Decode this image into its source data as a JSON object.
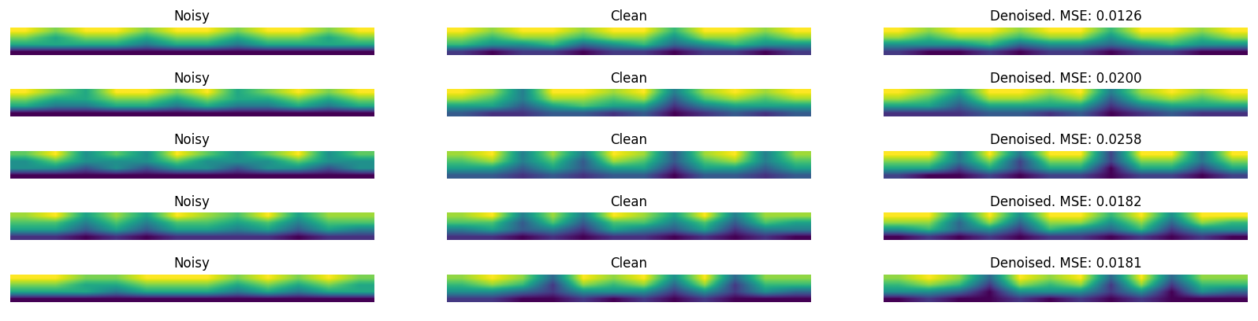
{
  "chart_data": [
    {
      "type": "heatmap",
      "title": "Noisy",
      "tick_labels": false,
      "cells": [
        [
          0.7,
          0.6,
          0.7,
          0.7,
          0.6,
          0.7,
          0.7,
          0.6,
          0.7,
          0.7,
          0.6,
          0.7
        ],
        [
          0.6,
          0.5,
          0.6,
          0.6,
          0.5,
          0.6,
          0.6,
          0.5,
          0.6,
          0.6,
          0.5,
          0.6
        ],
        [
          0.5,
          0.5,
          0.5,
          0.5,
          0.4,
          0.5,
          0.5,
          0.4,
          0.5,
          0.5,
          0.5,
          0.5
        ],
        [
          0.2,
          0.2,
          0.2,
          0.2,
          0.2,
          0.2,
          0.2,
          0.2,
          0.2,
          0.2,
          0.2,
          0.2
        ]
      ]
    },
    {
      "type": "heatmap",
      "title": "Clean",
      "tick_labels": false,
      "cells": [
        [
          0.7,
          0.6,
          0.7,
          0.7,
          0.6,
          0.7,
          0.7,
          0.5,
          0.7,
          0.7,
          0.6,
          0.7
        ],
        [
          0.6,
          0.5,
          0.6,
          0.6,
          0.5,
          0.6,
          0.6,
          0.4,
          0.6,
          0.6,
          0.5,
          0.6
        ],
        [
          0.5,
          0.4,
          0.4,
          0.5,
          0.3,
          0.4,
          0.5,
          0.3,
          0.4,
          0.5,
          0.4,
          0.4
        ],
        [
          0.2,
          0.1,
          0.2,
          0.2,
          0.1,
          0.2,
          0.2,
          0.1,
          0.2,
          0.2,
          0.1,
          0.2
        ]
      ]
    },
    {
      "type": "heatmap",
      "title": "Denoised. MSE: 0.0126",
      "tick_labels": false,
      "cells": [
        [
          0.7,
          0.6,
          0.7,
          0.7,
          0.6,
          0.7,
          0.7,
          0.5,
          0.7,
          0.7,
          0.6,
          0.7
        ],
        [
          0.6,
          0.5,
          0.6,
          0.6,
          0.5,
          0.6,
          0.6,
          0.4,
          0.6,
          0.6,
          0.5,
          0.6
        ],
        [
          0.4,
          0.4,
          0.4,
          0.5,
          0.3,
          0.4,
          0.4,
          0.3,
          0.4,
          0.5,
          0.4,
          0.4
        ],
        [
          0.2,
          0.1,
          0.1,
          0.2,
          0.1,
          0.2,
          0.2,
          0.1,
          0.2,
          0.2,
          0.1,
          0.1
        ]
      ]
    },
    {
      "type": "heatmap",
      "title": "Noisy",
      "tick_labels": false,
      "cells": [
        [
          0.7,
          0.6,
          0.5,
          0.7,
          0.7,
          0.6,
          0.7,
          0.5,
          0.6,
          0.7,
          0.6,
          0.7
        ],
        [
          0.6,
          0.5,
          0.5,
          0.6,
          0.6,
          0.5,
          0.6,
          0.5,
          0.5,
          0.6,
          0.5,
          0.6
        ],
        [
          0.5,
          0.4,
          0.4,
          0.5,
          0.5,
          0.4,
          0.5,
          0.4,
          0.4,
          0.5,
          0.4,
          0.5
        ],
        [
          0.2,
          0.2,
          0.2,
          0.2,
          0.2,
          0.2,
          0.2,
          0.2,
          0.2,
          0.2,
          0.2,
          0.2
        ]
      ]
    },
    {
      "type": "heatmap",
      "title": "Clean",
      "tick_labels": false,
      "cells": [
        [
          0.7,
          0.6,
          0.3,
          0.7,
          0.7,
          0.6,
          0.7,
          0.3,
          0.6,
          0.7,
          0.6,
          0.7
        ],
        [
          0.6,
          0.5,
          0.3,
          0.6,
          0.6,
          0.5,
          0.6,
          0.2,
          0.5,
          0.6,
          0.5,
          0.6
        ],
        [
          0.4,
          0.4,
          0.2,
          0.4,
          0.5,
          0.4,
          0.4,
          0.1,
          0.3,
          0.4,
          0.4,
          0.4
        ],
        [
          0.2,
          0.1,
          0.1,
          0.2,
          0.2,
          0.1,
          0.2,
          0.0,
          0.1,
          0.2,
          0.1,
          0.2
        ]
      ]
    },
    {
      "type": "heatmap",
      "title": "Denoised. MSE: 0.0200",
      "tick_labels": false,
      "cells": [
        [
          0.7,
          0.6,
          0.4,
          0.7,
          0.7,
          0.6,
          0.7,
          0.3,
          0.6,
          0.7,
          0.6,
          0.7
        ],
        [
          0.6,
          0.5,
          0.3,
          0.6,
          0.6,
          0.5,
          0.6,
          0.2,
          0.5,
          0.6,
          0.5,
          0.6
        ],
        [
          0.4,
          0.4,
          0.2,
          0.4,
          0.4,
          0.4,
          0.4,
          0.1,
          0.3,
          0.4,
          0.4,
          0.4
        ],
        [
          0.1,
          0.1,
          0.1,
          0.2,
          0.2,
          0.1,
          0.2,
          0.0,
          0.1,
          0.2,
          0.1,
          0.1
        ]
      ]
    },
    {
      "type": "heatmap",
      "title": "Noisy",
      "tick_labels": false,
      "cells": [
        [
          0.6,
          0.7,
          0.5,
          0.6,
          0.5,
          0.7,
          0.6,
          0.5,
          0.6,
          0.7,
          0.5,
          0.6
        ],
        [
          0.5,
          0.6,
          0.5,
          0.5,
          0.5,
          0.6,
          0.5,
          0.5,
          0.5,
          0.6,
          0.5,
          0.5
        ],
        [
          0.5,
          0.5,
          0.4,
          0.5,
          0.4,
          0.5,
          0.5,
          0.4,
          0.5,
          0.5,
          0.4,
          0.5
        ],
        [
          0.3,
          0.3,
          0.3,
          0.3,
          0.3,
          0.3,
          0.3,
          0.3,
          0.3,
          0.3,
          0.3,
          0.3
        ]
      ]
    },
    {
      "type": "heatmap",
      "title": "Clean",
      "tick_labels": false,
      "cells": [
        [
          0.6,
          0.7,
          0.3,
          0.6,
          0.3,
          0.7,
          0.6,
          0.2,
          0.6,
          0.7,
          0.3,
          0.6
        ],
        [
          0.5,
          0.6,
          0.3,
          0.5,
          0.2,
          0.6,
          0.5,
          0.2,
          0.5,
          0.6,
          0.3,
          0.5
        ],
        [
          0.4,
          0.4,
          0.2,
          0.4,
          0.2,
          0.4,
          0.4,
          0.1,
          0.4,
          0.4,
          0.2,
          0.4
        ],
        [
          0.2,
          0.2,
          0.1,
          0.2,
          0.1,
          0.2,
          0.2,
          0.0,
          0.2,
          0.2,
          0.1,
          0.2
        ]
      ]
    },
    {
      "type": "heatmap",
      "title": "Denoised. MSE: 0.0258",
      "tick_labels": false,
      "cells": [
        [
          0.6,
          0.6,
          0.3,
          0.6,
          0.3,
          0.6,
          0.6,
          0.2,
          0.6,
          0.6,
          0.3,
          0.6
        ],
        [
          0.5,
          0.5,
          0.3,
          0.5,
          0.2,
          0.5,
          0.5,
          0.2,
          0.5,
          0.5,
          0.3,
          0.5
        ],
        [
          0.4,
          0.4,
          0.2,
          0.4,
          0.2,
          0.4,
          0.4,
          0.1,
          0.4,
          0.4,
          0.2,
          0.4
        ],
        [
          0.2,
          0.1,
          0.1,
          0.2,
          0.1,
          0.2,
          0.2,
          0.1,
          0.2,
          0.2,
          0.1,
          0.2
        ]
      ]
    },
    {
      "type": "heatmap",
      "title": "Noisy",
      "tick_labels": false,
      "cells": [
        [
          0.7,
          0.8,
          0.5,
          0.7,
          0.5,
          0.8,
          0.7,
          0.6,
          0.8,
          0.5,
          0.7,
          0.7
        ],
        [
          0.6,
          0.6,
          0.4,
          0.6,
          0.4,
          0.6,
          0.6,
          0.5,
          0.6,
          0.4,
          0.6,
          0.6
        ],
        [
          0.5,
          0.5,
          0.3,
          0.5,
          0.3,
          0.5,
          0.5,
          0.4,
          0.5,
          0.3,
          0.5,
          0.4
        ],
        [
          0.2,
          0.2,
          0.1,
          0.2,
          0.1,
          0.2,
          0.2,
          0.2,
          0.2,
          0.1,
          0.2,
          0.2
        ]
      ]
    },
    {
      "type": "heatmap",
      "title": "Clean",
      "tick_labels": false,
      "cells": [
        [
          0.7,
          0.8,
          0.4,
          0.7,
          0.4,
          0.8,
          0.7,
          0.5,
          0.8,
          0.4,
          0.7,
          0.7
        ],
        [
          0.6,
          0.6,
          0.3,
          0.6,
          0.3,
          0.6,
          0.6,
          0.4,
          0.6,
          0.3,
          0.6,
          0.5
        ],
        [
          0.4,
          0.5,
          0.3,
          0.4,
          0.2,
          0.5,
          0.4,
          0.3,
          0.5,
          0.2,
          0.4,
          0.4
        ],
        [
          0.2,
          0.2,
          0.1,
          0.2,
          0.1,
          0.2,
          0.2,
          0.1,
          0.2,
          0.1,
          0.2,
          0.1
        ]
      ]
    },
    {
      "type": "heatmap",
      "title": "Denoised. MSE: 0.0182",
      "tick_labels": false,
      "cells": [
        [
          0.7,
          0.7,
          0.4,
          0.7,
          0.4,
          0.7,
          0.7,
          0.5,
          0.7,
          0.4,
          0.7,
          0.7
        ],
        [
          0.6,
          0.6,
          0.3,
          0.6,
          0.3,
          0.6,
          0.6,
          0.4,
          0.6,
          0.3,
          0.6,
          0.5
        ],
        [
          0.4,
          0.5,
          0.3,
          0.4,
          0.2,
          0.5,
          0.4,
          0.3,
          0.5,
          0.2,
          0.4,
          0.4
        ],
        [
          0.1,
          0.2,
          0.1,
          0.2,
          0.1,
          0.2,
          0.2,
          0.1,
          0.2,
          0.1,
          0.2,
          0.1
        ]
      ]
    },
    {
      "type": "heatmap",
      "title": "Noisy",
      "tick_labels": false,
      "cells": [
        [
          0.7,
          0.7,
          0.6,
          0.6,
          0.7,
          0.7,
          0.7,
          0.6,
          0.7,
          0.6,
          0.7,
          0.6
        ],
        [
          0.6,
          0.6,
          0.5,
          0.5,
          0.6,
          0.6,
          0.6,
          0.5,
          0.6,
          0.5,
          0.6,
          0.5
        ],
        [
          0.5,
          0.5,
          0.5,
          0.4,
          0.5,
          0.5,
          0.5,
          0.4,
          0.5,
          0.4,
          0.5,
          0.5
        ],
        [
          0.2,
          0.2,
          0.2,
          0.2,
          0.2,
          0.2,
          0.2,
          0.2,
          0.2,
          0.2,
          0.2,
          0.2
        ]
      ]
    },
    {
      "type": "heatmap",
      "title": "Clean",
      "tick_labels": false,
      "cells": [
        [
          0.6,
          0.7,
          0.6,
          0.3,
          0.7,
          0.6,
          0.7,
          0.4,
          0.7,
          0.3,
          0.6,
          0.6
        ],
        [
          0.5,
          0.6,
          0.5,
          0.2,
          0.6,
          0.5,
          0.6,
          0.3,
          0.6,
          0.2,
          0.5,
          0.5
        ],
        [
          0.4,
          0.4,
          0.3,
          0.2,
          0.4,
          0.4,
          0.4,
          0.2,
          0.4,
          0.2,
          0.4,
          0.3
        ],
        [
          0.2,
          0.2,
          0.1,
          0.1,
          0.2,
          0.1,
          0.2,
          0.1,
          0.2,
          0.1,
          0.1,
          0.1
        ]
      ]
    },
    {
      "type": "heatmap",
      "title": "Denoised. MSE: 0.0181",
      "tick_labels": false,
      "cells": [
        [
          0.6,
          0.7,
          0.6,
          0.3,
          0.7,
          0.6,
          0.7,
          0.3,
          0.7,
          0.3,
          0.6,
          0.6
        ],
        [
          0.5,
          0.6,
          0.5,
          0.2,
          0.6,
          0.5,
          0.6,
          0.2,
          0.6,
          0.2,
          0.5,
          0.5
        ],
        [
          0.4,
          0.4,
          0.3,
          0.1,
          0.4,
          0.4,
          0.4,
          0.2,
          0.4,
          0.1,
          0.4,
          0.3
        ],
        [
          0.1,
          0.2,
          0.1,
          0.1,
          0.2,
          0.1,
          0.2,
          0.1,
          0.2,
          0.1,
          0.1,
          0.1
        ]
      ]
    }
  ]
}
